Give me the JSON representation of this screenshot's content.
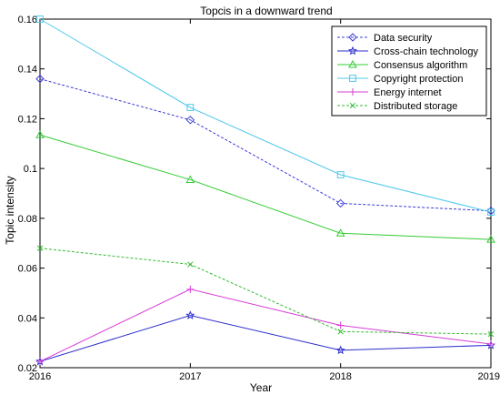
{
  "chart_data": {
    "type": "line",
    "title": "Topcis in a downward trend",
    "xlabel": "Year",
    "ylabel": "Topic intensity",
    "x": [
      "2016",
      "2017",
      "2018",
      "2019"
    ],
    "xlim": [
      2016,
      2019
    ],
    "ylim": [
      0.02,
      0.16
    ],
    "yticks": [
      "0.02",
      "0.04",
      "0.06",
      "0.08",
      "0.1",
      "0.12",
      "0.14",
      "0.16"
    ],
    "grid": false,
    "legend_position": "top-right",
    "series": [
      {
        "name": "Data security",
        "color": "#3b3bd6",
        "dash": "dotted",
        "marker": "diamond",
        "values": [
          0.136,
          0.1195,
          0.086,
          0.083
        ]
      },
      {
        "name": "Cross-chain technology",
        "color": "#2d2dcf",
        "dash": "solid",
        "marker": "star",
        "values": [
          0.0225,
          0.041,
          0.027,
          0.029
        ]
      },
      {
        "name": "Consensus algorithm",
        "color": "#33cc33",
        "dash": "solid",
        "marker": "triangle",
        "values": [
          0.1135,
          0.0955,
          0.074,
          0.0715
        ]
      },
      {
        "name": "Copyright protection",
        "color": "#4fc8ea",
        "dash": "solid",
        "marker": "square",
        "values": [
          0.16,
          0.1245,
          0.0975,
          0.0825
        ]
      },
      {
        "name": "Energy internet",
        "color": "#d63cd6",
        "dash": "solid",
        "marker": "plus",
        "values": [
          0.0225,
          0.0515,
          0.037,
          0.0295
        ]
      },
      {
        "name": "Distributed storage",
        "color": "#33bb33",
        "dash": "dotted",
        "marker": "x",
        "values": [
          0.068,
          0.0615,
          0.0345,
          0.0335
        ]
      }
    ]
  }
}
